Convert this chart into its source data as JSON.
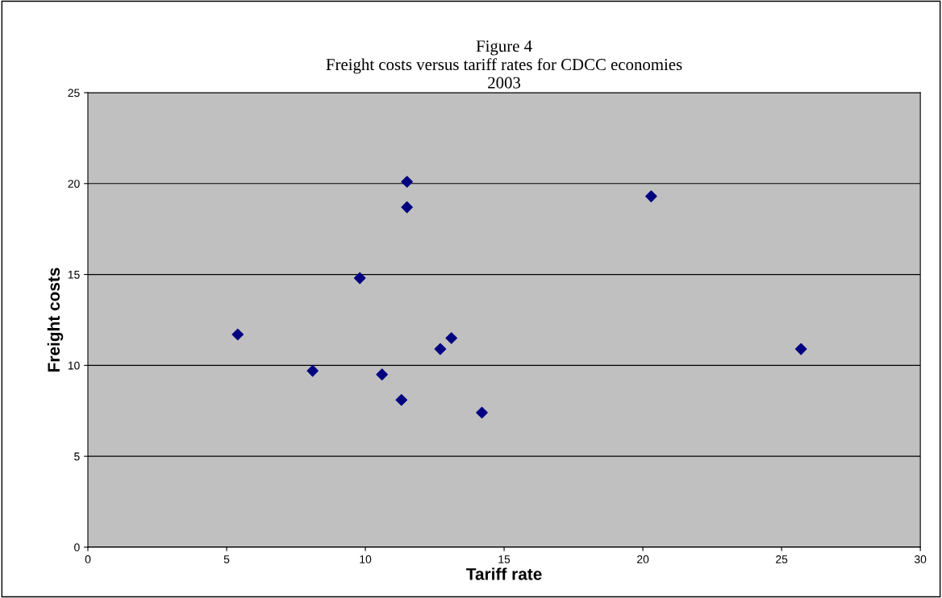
{
  "chart_data": {
    "type": "scatter",
    "title": "Figure 4\nFreight costs versus tariff rates for CDCC economies\n2003",
    "xlabel": "Tariff rate",
    "ylabel": "Freight costs",
    "x": [
      5.4,
      8.1,
      9.8,
      10.6,
      11.3,
      11.5,
      11.5,
      12.7,
      13.1,
      14.2,
      20.3,
      25.7
    ],
    "series": [
      {
        "color": "#000080",
        "values": [
          11.7,
          9.7,
          14.8,
          9.5,
          8.1,
          20.1,
          18.7,
          10.9,
          11.5,
          7.4,
          19.3,
          10.9
        ]
      }
    ],
    "xlim": [
      0,
      30
    ],
    "xticks": [
      0,
      5,
      10,
      15,
      20,
      25,
      30
    ],
    "ylim": [
      0,
      25
    ],
    "yticks": [
      0,
      5,
      10,
      15,
      20,
      25
    ],
    "grid": "y",
    "legend": false,
    "marker": "diamond"
  }
}
